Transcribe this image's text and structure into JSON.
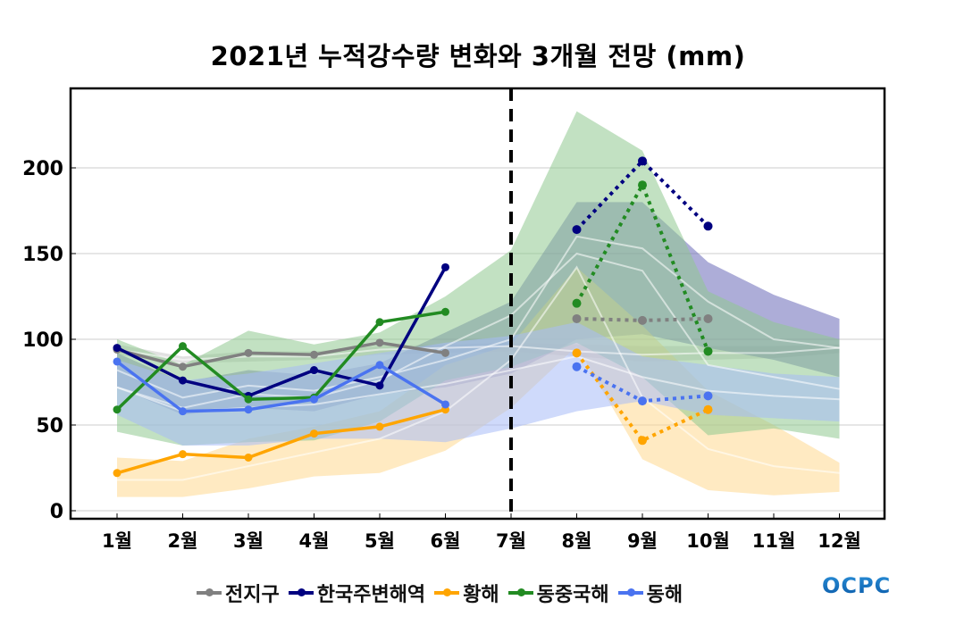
{
  "chart_data": {
    "type": "line",
    "title": "2021년 누적강수량 변화와 3개월 전망 (mm)",
    "xlabel": "",
    "ylabel": "",
    "categories": [
      "1월",
      "2월",
      "3월",
      "4월",
      "5월",
      "6월",
      "7월",
      "8월",
      "9월",
      "10월",
      "11월",
      "12월"
    ],
    "yticks": [
      0,
      50,
      100,
      150,
      200
    ],
    "ylim": [
      -2,
      246
    ],
    "grid": true,
    "divider_at": "7월",
    "legend_position": "bottom",
    "series": [
      {
        "name": "전지구",
        "color": "#808080",
        "observed": [
          94,
          84,
          92,
          91,
          98,
          92,
          null,
          null,
          null,
          null,
          null,
          null
        ],
        "forecast": [
          null,
          null,
          null,
          null,
          null,
          null,
          null,
          112,
          111,
          112,
          null,
          null
        ],
        "band_color": "#c8c8c8",
        "band_upper": [
          97,
          90,
          93,
          93,
          96,
          97,
          98,
          97,
          96,
          96,
          96,
          97
        ],
        "band_lower": [
          91,
          86,
          87,
          88,
          91,
          92,
          93,
          90,
          87,
          88,
          89,
          92
        ],
        "climatology": [
          94,
          88,
          90,
          90,
          94,
          95,
          96,
          93,
          91,
          92,
          92,
          95
        ]
      },
      {
        "name": "한국주변해역",
        "color": "#000080",
        "observed": [
          95,
          76,
          67,
          82,
          73,
          142,
          null,
          null,
          null,
          null,
          null,
          null
        ],
        "forecast": [
          null,
          null,
          null,
          null,
          null,
          null,
          null,
          164,
          204,
          166,
          null,
          null
        ],
        "band_color": "#6a6ab8",
        "band_upper": [
          92,
          75,
          82,
          79,
          86,
          104,
          122,
          180,
          180,
          145,
          126,
          112
        ],
        "band_lower": [
          72,
          56,
          60,
          58,
          68,
          72,
          80,
          100,
          103,
          95,
          88,
          78
        ],
        "climatology": [
          82,
          66,
          73,
          70,
          78,
          88,
          100,
          160,
          153,
          122,
          100,
          95
        ]
      },
      {
        "name": "황해",
        "color": "#ffa500",
        "observed": [
          22,
          33,
          31,
          45,
          49,
          59,
          null,
          null,
          null,
          null,
          null,
          null
        ],
        "forecast": [
          null,
          null,
          null,
          null,
          null,
          null,
          null,
          92,
          41,
          59,
          null,
          null
        ],
        "band_color": "#ffd990",
        "band_upper": [
          31,
          29,
          42,
          49,
          58,
          85,
          97,
          142,
          108,
          70,
          50,
          28
        ],
        "band_lower": [
          8,
          8,
          13,
          20,
          22,
          35,
          60,
          96,
          30,
          12,
          9,
          11
        ],
        "climatology": [
          18,
          18,
          26,
          34,
          42,
          58,
          88,
          142,
          66,
          36,
          26,
          22
        ]
      },
      {
        "name": "동중국해",
        "color": "#228b22",
        "observed": [
          59,
          96,
          65,
          66,
          110,
          116,
          null,
          null,
          null,
          null,
          null,
          null
        ],
        "forecast": [
          null,
          null,
          null,
          null,
          null,
          null,
          null,
          121,
          190,
          93,
          null,
          null
        ],
        "band_color": "#90c890",
        "band_upper": [
          100,
          85,
          105,
          97,
          104,
          125,
          152,
          233,
          210,
          128,
          110,
          100
        ],
        "band_lower": [
          46,
          38,
          40,
          41,
          52,
          76,
          84,
          98,
          78,
          44,
          48,
          42
        ],
        "climatology": [
          72,
          60,
          68,
          66,
          76,
          96,
          114,
          150,
          140,
          85,
          78,
          71
        ]
      },
      {
        "name": "동해",
        "color": "#4a73f0",
        "observed": [
          87,
          58,
          59,
          65,
          85,
          62,
          null,
          null,
          null,
          null,
          null,
          null
        ],
        "forecast": [
          null,
          null,
          null,
          null,
          null,
          null,
          null,
          84,
          64,
          67,
          null,
          null
        ],
        "band_color": "#a8bcf8",
        "band_upper": [
          88,
          76,
          80,
          86,
          92,
          98,
          102,
          110,
          90,
          85,
          80,
          78
        ],
        "band_lower": [
          56,
          38,
          38,
          42,
          42,
          40,
          48,
          58,
          64,
          56,
          54,
          52
        ],
        "climatology": [
          72,
          58,
          60,
          62,
          68,
          74,
          82,
          90,
          78,
          70,
          67,
          65
        ]
      }
    ]
  },
  "legend": {
    "items": [
      {
        "label": "전지구",
        "color": "#808080"
      },
      {
        "label": "한국주변해역",
        "color": "#000080"
      },
      {
        "label": "황해",
        "color": "#ffa500"
      },
      {
        "label": "동중국해",
        "color": "#228b22"
      },
      {
        "label": "동해",
        "color": "#4a73f0"
      }
    ]
  },
  "logo": {
    "text": "OCPC"
  }
}
